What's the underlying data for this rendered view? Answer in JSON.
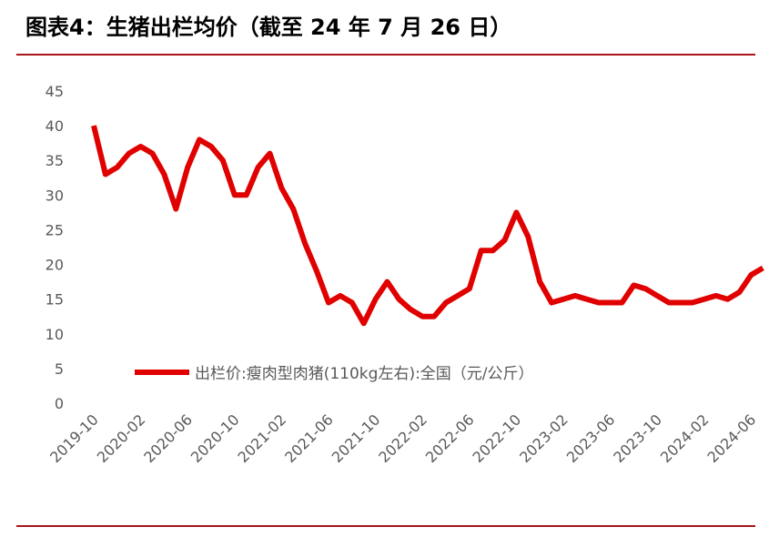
{
  "chart_data": {
    "type": "line",
    "title": "图表4：生猪出栏均价（截至 24 年 7 月 26 日）",
    "categories": [
      "2019-10",
      null,
      null,
      null,
      "2020-02",
      null,
      null,
      null,
      "2020-06",
      null,
      null,
      null,
      "2020-10",
      null,
      null,
      null,
      "2021-02",
      null,
      null,
      null,
      "2021-06",
      null,
      null,
      null,
      "2021-10",
      null,
      null,
      null,
      "2022-02",
      null,
      null,
      null,
      "2022-06",
      null,
      null,
      null,
      "2022-10",
      null,
      null,
      null,
      "2023-02",
      null,
      null,
      null,
      "2023-06",
      null,
      null,
      null,
      "2023-10",
      null,
      null,
      null,
      "2024-02",
      null,
      null,
      null,
      "2024-06",
      null
    ],
    "series": [
      {
        "name": "出栏价:瘦肉型肉猪(110kg左右):全国（元/公斤）",
        "color": "#e00000",
        "values": [
          40,
          33,
          34,
          36,
          37,
          36,
          33,
          28,
          34,
          38,
          37,
          35,
          30,
          30,
          34,
          36,
          31,
          28,
          23,
          19,
          14.5,
          15.5,
          14.5,
          11.5,
          15,
          17.5,
          15,
          13.5,
          12.5,
          12.5,
          14.5,
          15.5,
          16.5,
          22,
          22,
          23.5,
          27.5,
          24,
          17.5,
          14.5,
          15,
          15.5,
          15,
          14.5,
          14.5,
          14.5,
          17,
          16.5,
          15.5,
          14.5,
          14.5,
          14.5,
          15,
          15.5,
          15,
          16,
          18.5,
          19.5
        ]
      }
    ],
    "ylim": [
      0,
      45
    ],
    "yticks": [
      0,
      5,
      10,
      15,
      20,
      25,
      30,
      35,
      40,
      45
    ],
    "grid": false
  }
}
